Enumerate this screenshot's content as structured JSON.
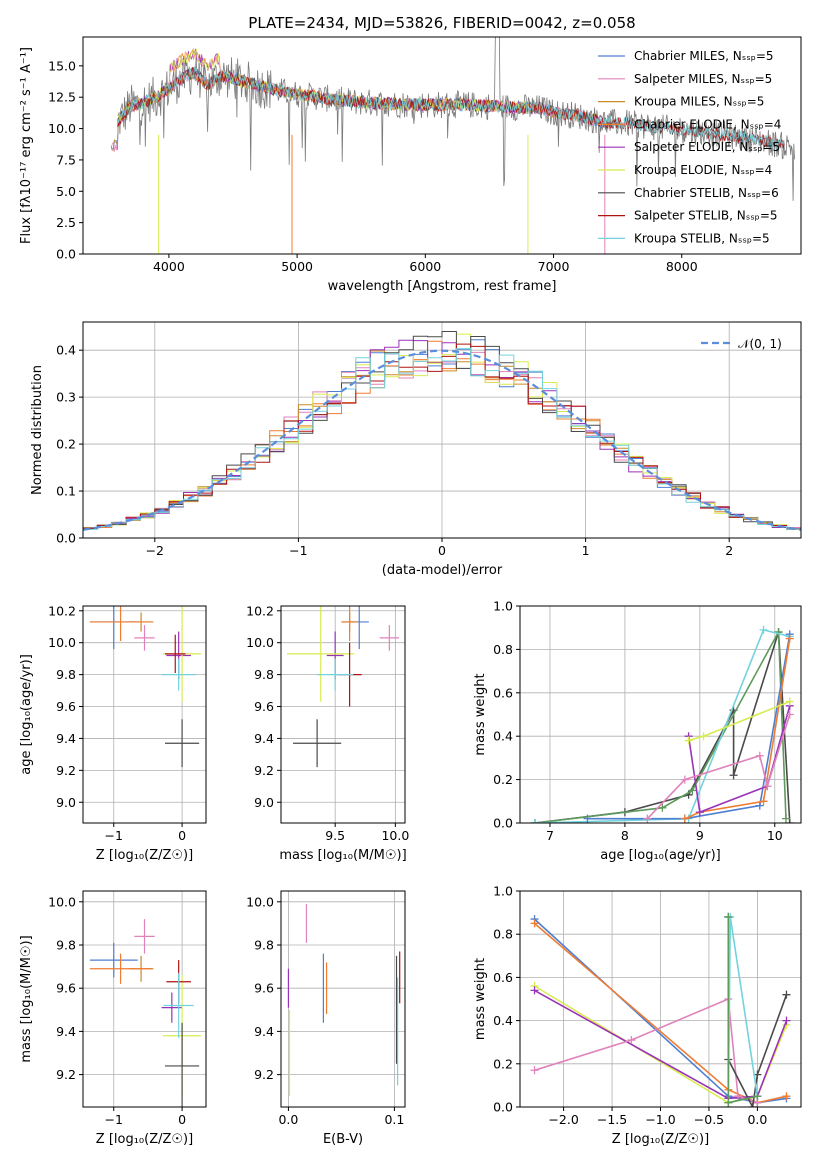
{
  "colors": {
    "Chabrier MILES": "#4f7fd0",
    "Salpeter MILES": "#e082bb",
    "Kroupa MILES": "#c98a27",
    "Chabrier ELODIE": "#f07c32",
    "Salpeter ELODIE": "#9b33b8",
    "Kroupa ELODIE": "#d8ec4f",
    "Chabrier STELIB": "#4a4a4a",
    "Salpeter STELIB": "#b01212",
    "Kroupa STELIB": "#73d3dd",
    "spectrum": "#7a7a7a",
    "normal_curve": "#5a8edc",
    "green_line": "#5d9a5b"
  },
  "chart_data": [
    {
      "id": "spectrum",
      "type": "line",
      "title": "PLATE=2434, MJD=53826, FIBERID=0042, z=0.058",
      "xlabel": "wavelength [Angstrom, rest frame]",
      "ylabel": "Flux [fλ10⁻¹⁷ erg cm⁻² s⁻¹ A⁻¹]",
      "xlim": [
        3330,
        8930
      ],
      "ylim": [
        0,
        17.3
      ],
      "xticks": [
        "4000",
        "5000",
        "6000",
        "7000",
        "8000"
      ],
      "yticks": [
        "0.0",
        "2.5",
        "5.0",
        "7.5",
        "10.0",
        "12.5",
        "15.0"
      ],
      "legend_position": "top-right",
      "legend": [
        "Chabrier MILES, N_SSP=5",
        "Salpeter MILES, N_SSP=5",
        "Kroupa MILES, N_SSP=5",
        "Chabrier ELODIE, N_SSP=4",
        "Salpeter ELODIE, N_SSP=5",
        "Kroupa ELODIE, N_SSP=4",
        "Chabrier STELIB, N_SSP=6",
        "Salpeter STELIB, N_SSP=5",
        "Kroupa STELIB, N_SSP=5"
      ],
      "continuum": [
        [
          3600,
          10.5
        ],
        [
          3700,
          11.8
        ],
        [
          3800,
          12.0
        ],
        [
          3900,
          12.5
        ],
        [
          4000,
          13.2
        ],
        [
          4100,
          14.0
        ],
        [
          4200,
          14.5
        ],
        [
          4300,
          13.5
        ],
        [
          4400,
          14.2
        ],
        [
          4500,
          14.0
        ],
        [
          4700,
          13.4
        ],
        [
          4900,
          12.9
        ],
        [
          5100,
          12.6
        ],
        [
          5300,
          12.3
        ],
        [
          5500,
          12.1
        ],
        [
          5700,
          12.0
        ],
        [
          5900,
          11.9
        ],
        [
          6100,
          11.9
        ],
        [
          6300,
          11.9
        ],
        [
          6500,
          11.8
        ],
        [
          6700,
          11.7
        ],
        [
          6900,
          11.6
        ],
        [
          7000,
          11.3
        ],
        [
          7200,
          11.0
        ],
        [
          7400,
          10.5
        ],
        [
          7600,
          10.4
        ],
        [
          7800,
          10.1
        ],
        [
          8000,
          9.9
        ],
        [
          8200,
          9.7
        ],
        [
          8400,
          9.4
        ],
        [
          8600,
          9.1
        ],
        [
          8800,
          8.6
        ]
      ]
    },
    {
      "id": "residuals",
      "type": "line",
      "xlabel": "(data-model)/error",
      "ylabel": "Normed distribution",
      "xlim": [
        -2.5,
        2.5
      ],
      "ylim": [
        0,
        0.46
      ],
      "xticks": [
        -2,
        -1,
        0,
        1,
        2
      ],
      "yticks": [
        "0.0",
        "0.1",
        "0.2",
        "0.3",
        "0.4"
      ],
      "grid": true,
      "legend_position": "top-right",
      "normal_label": "𝒩(0, 1)"
    },
    {
      "id": "age-vs-Z",
      "type": "scatter",
      "xlabel": "Z [log₁₀(Z/Z☉)]",
      "ylabel": "age  [log₁₀(age/yr)]",
      "xlim": [
        -1.45,
        0.35
      ],
      "ylim": [
        8.87,
        10.23
      ],
      "xticks": [
        -1,
        0
      ],
      "yticks": [
        "9.0",
        "9.2",
        "9.4",
        "9.6",
        "9.8",
        "10.0",
        "10.2"
      ],
      "grid": true,
      "points": [
        {
          "m": "Chabrier MILES",
          "x": -1.0,
          "y": 10.13,
          "ex": 0.35,
          "ey": 0.17
        },
        {
          "m": "Salpeter MILES",
          "x": -0.55,
          "y": 10.03,
          "ex": 0.15,
          "ey": 0.08
        },
        {
          "m": "Kroupa MILES",
          "x": -0.6,
          "y": 10.13,
          "ex": 0.18,
          "ey": 0.06
        },
        {
          "m": "Chabrier ELODIE",
          "x": -0.9,
          "y": 10.13,
          "ex": 0.45,
          "ey": 0.12
        },
        {
          "m": "Salpeter ELODIE",
          "x": -0.05,
          "y": 9.92,
          "ex": 0.18,
          "ey": 0.15
        },
        {
          "m": "Kroupa ELODIE",
          "x": 0.0,
          "y": 9.93,
          "ex": 0.28,
          "ey": 0.3
        },
        {
          "m": "Chabrier STELIB",
          "x": 0.0,
          "y": 9.37,
          "ex": 0.25,
          "ey": 0.15
        },
        {
          "m": "Salpeter STELIB",
          "x": -0.1,
          "y": 9.93,
          "ex": 0.15,
          "ey": 0.12
        },
        {
          "m": "Kroupa STELIB",
          "x": -0.05,
          "y": 9.8,
          "ex": 0.25,
          "ey": 0.1
        }
      ]
    },
    {
      "id": "age-vs-mass",
      "type": "scatter",
      "xlabel": "mass [log₁₀(M/M☉)]",
      "ylabel": "",
      "xlim": [
        9.05,
        10.08
      ],
      "ylim": [
        8.87,
        10.23
      ],
      "xticks": [
        9.5,
        10.0
      ],
      "yticks": [
        "9.0",
        "9.2",
        "9.4",
        "9.6",
        "9.8",
        "10.0",
        "10.2"
      ],
      "grid": true,
      "points": [
        {
          "m": "Chabrier MILES",
          "x": 9.7,
          "y": 10.13,
          "ex": 0.08,
          "ey": 0.17
        },
        {
          "m": "Salpeter MILES",
          "x": 9.95,
          "y": 10.03,
          "ex": 0.08,
          "ey": 0.08
        },
        {
          "m": "Kroupa MILES",
          "x": 9.62,
          "y": 10.13,
          "ex": 0.06,
          "ey": 0.06
        },
        {
          "m": "Chabrier ELODIE",
          "x": 9.62,
          "y": 10.13,
          "ex": 0.07,
          "ey": 0.12
        },
        {
          "m": "Salpeter ELODIE",
          "x": 9.5,
          "y": 9.92,
          "ex": 0.07,
          "ey": 0.15
        },
        {
          "m": "Kroupa ELODIE",
          "x": 9.38,
          "y": 9.93,
          "ex": 0.28,
          "ey": 0.3
        },
        {
          "m": "Chabrier STELIB",
          "x": 9.35,
          "y": 9.37,
          "ex": 0.2,
          "ey": 0.15
        },
        {
          "m": "Salpeter STELIB",
          "x": 9.62,
          "y": 9.8,
          "ex": 0.1,
          "ey": 0.2
        },
        {
          "m": "Kroupa STELIB",
          "x": 9.5,
          "y": 9.8,
          "ex": 0.15,
          "ey": 0.1
        }
      ]
    },
    {
      "id": "weight-vs-age",
      "type": "line",
      "xlabel": "age  [log₁₀(age/yr)]",
      "ylabel": "mass weight",
      "xlim": [
        6.6,
        10.35
      ],
      "ylim": [
        0,
        1.0
      ],
      "xticks": [
        7,
        8,
        9,
        10
      ],
      "yticks": [
        "0.0",
        "0.2",
        "0.4",
        "0.6",
        "0.8",
        "1.0"
      ],
      "grid": true,
      "series": [
        {
          "m": "Chabrier STELIB",
          "x": [
            6.8,
            8.0,
            8.85,
            9.45,
            9.45,
            10.05,
            10.2
          ],
          "y": [
            0.0,
            0.05,
            0.13,
            0.52,
            0.22,
            0.88,
            0.0
          ]
        },
        {
          "m": "green_line",
          "x": [
            6.8,
            8.5,
            8.9,
            10.05,
            10.15
          ],
          "y": [
            0.0,
            0.07,
            0.15,
            0.88,
            0.02
          ]
        },
        {
          "m": "Kroupa STELIB",
          "x": [
            6.8,
            8.85,
            9.85,
            10.2
          ],
          "y": [
            0.0,
            0.02,
            0.89,
            0.86
          ]
        },
        {
          "m": "Chabrier MILES",
          "x": [
            7.5,
            8.8,
            9.8,
            10.2
          ],
          "y": [
            0.02,
            0.02,
            0.08,
            0.87
          ]
        },
        {
          "m": "Chabrier ELODIE",
          "x": [
            8.8,
            9.0,
            9.85,
            10.2
          ],
          "y": [
            0.02,
            0.05,
            0.1,
            0.85
          ]
        },
        {
          "m": "Salpeter ELODIE",
          "x": [
            8.85,
            9.0,
            9.9,
            10.2
          ],
          "y": [
            0.4,
            0.05,
            0.17,
            0.54
          ]
        },
        {
          "m": "Kroupa ELODIE",
          "x": [
            8.85,
            9.05,
            10.2
          ],
          "y": [
            0.38,
            0.4,
            0.56
          ]
        },
        {
          "m": "Salpeter MILES",
          "x": [
            8.3,
            8.8,
            9.8,
            9.9,
            10.2
          ],
          "y": [
            0.02,
            0.2,
            0.31,
            0.17,
            0.5
          ]
        }
      ]
    },
    {
      "id": "mass-vs-Z",
      "type": "scatter",
      "xlabel": "Z [log₁₀(Z/Z☉)]",
      "ylabel": "mass [log₁₀(M/M☉)]",
      "xlim": [
        -1.45,
        0.35
      ],
      "ylim": [
        9.05,
        10.05
      ],
      "xticks": [
        -1,
        0
      ],
      "yticks": [
        "9.2",
        "9.4",
        "9.6",
        "9.8",
        "10.0"
      ],
      "grid": true,
      "points": [
        {
          "m": "Chabrier MILES",
          "x": -1.0,
          "y": 9.73,
          "ex": 0.35,
          "ey": 0.08
        },
        {
          "m": "Salpeter MILES",
          "x": -0.55,
          "y": 9.84,
          "ex": 0.15,
          "ey": 0.08
        },
        {
          "m": "Kroupa MILES",
          "x": -0.6,
          "y": 9.69,
          "ex": 0.18,
          "ey": 0.06
        },
        {
          "m": "Chabrier ELODIE",
          "x": -0.9,
          "y": 9.69,
          "ex": 0.45,
          "ey": 0.07
        },
        {
          "m": "Salpeter ELODIE",
          "x": -0.15,
          "y": 9.51,
          "ex": 0.15,
          "ey": 0.07
        },
        {
          "m": "Kroupa ELODIE",
          "x": 0.0,
          "y": 9.38,
          "ex": 0.28,
          "ey": 0.28
        },
        {
          "m": "Chabrier STELIB",
          "x": 0.0,
          "y": 9.24,
          "ex": 0.25,
          "ey": 0.2
        },
        {
          "m": "Salpeter STELIB",
          "x": -0.05,
          "y": 9.63,
          "ex": 0.18,
          "ey": 0.1
        },
        {
          "m": "Kroupa STELIB",
          "x": -0.05,
          "y": 9.52,
          "ex": 0.22,
          "ey": 0.15
        }
      ]
    },
    {
      "id": "mass-vs-EBV",
      "type": "scatter",
      "xlabel": "E(B-V)",
      "ylabel": "",
      "xlim": [
        -0.007,
        0.11
      ],
      "ylim": [
        9.05,
        10.05
      ],
      "xticks": [
        0.0,
        0.1
      ],
      "yticks": [
        "9.2",
        "9.4",
        "9.6",
        "9.8",
        "10.0"
      ],
      "grid": true,
      "points": [
        {
          "m": "Salpeter MILES",
          "x": 0.017,
          "y": 9.9,
          "ex": 0,
          "ey": 0.09
        },
        {
          "m": "Salpeter ELODIE",
          "x": 0.0,
          "y": 9.6,
          "ex": 0,
          "ey": 0.09
        },
        {
          "m": "Kroupa ELODIE",
          "x": 0.001,
          "y": 9.3,
          "ex": 0,
          "ey": 0.2
        },
        {
          "m": "Chabrier MILES",
          "x": 0.033,
          "y": 9.6,
          "ex": 0,
          "ey": 0.16
        },
        {
          "m": "Chabrier ELODIE",
          "x": 0.036,
          "y": 9.6,
          "ex": 0,
          "ey": 0.12
        },
        {
          "m": "Salpeter STELIB",
          "x": 0.105,
          "y": 9.65,
          "ex": 0,
          "ey": 0.12
        },
        {
          "m": "Kroupa STELIB",
          "x": 0.103,
          "y": 9.4,
          "ex": 0,
          "ey": 0.25
        },
        {
          "m": "Chabrier STELIB",
          "x": 0.102,
          "y": 9.5,
          "ex": 0,
          "ey": 0.25
        }
      ]
    },
    {
      "id": "weight-vs-Z",
      "type": "line",
      "xlabel": "Z [log₁₀(Z/Z☉)]",
      "ylabel": "mass weight",
      "xlim": [
        -2.45,
        0.45
      ],
      "ylim": [
        0,
        1.0
      ],
      "xticks": [
        "−2.0",
        "−1.5",
        "−1.0",
        "−0.5",
        "0.0"
      ],
      "xtick_values": [
        -2.0,
        -1.5,
        -1.0,
        -0.5,
        0.0
      ],
      "yticks": [
        "0.0",
        "0.2",
        "0.4",
        "0.6",
        "0.8",
        "1.0"
      ],
      "grid": true,
      "series": [
        {
          "m": "Chabrier MILES",
          "x": [
            -2.3,
            -0.3,
            0.0,
            0.3
          ],
          "y": [
            0.87,
            0.05,
            0.02,
            0.04
          ]
        },
        {
          "m": "Chabrier ELODIE",
          "x": [
            -2.3,
            -0.3,
            0.0,
            0.3
          ],
          "y": [
            0.85,
            0.08,
            0.02,
            0.05
          ]
        },
        {
          "m": "Kroupa ELODIE",
          "x": [
            -2.3,
            -0.3,
            0.0,
            0.3
          ],
          "y": [
            0.56,
            0.02,
            0.05,
            0.38
          ]
        },
        {
          "m": "Salpeter ELODIE",
          "x": [
            -2.3,
            -0.3,
            0.0,
            0.3
          ],
          "y": [
            0.54,
            0.04,
            0.05,
            0.4
          ]
        },
        {
          "m": "Salpeter MILES",
          "x": [
            -2.3,
            -1.3,
            -0.3,
            -0.2,
            0.0
          ],
          "y": [
            0.17,
            0.31,
            0.5,
            0.05,
            0.02
          ]
        },
        {
          "m": "Chabrier STELIB",
          "x": [
            -0.3,
            -0.3,
            -0.05,
            0.0,
            0.3
          ],
          "y": [
            0.88,
            0.22,
            0.0,
            0.15,
            0.52
          ]
        },
        {
          "m": "Kroupa STELIB",
          "x": [
            -0.3,
            -0.3,
            -0.28,
            0.0
          ],
          "y": [
            0.88,
            0.0,
            0.88,
            0.05
          ]
        },
        {
          "m": "green_line",
          "x": [
            -0.3,
            -0.3,
            0.0
          ],
          "y": [
            0.88,
            0.02,
            0.05
          ]
        }
      ]
    }
  ]
}
